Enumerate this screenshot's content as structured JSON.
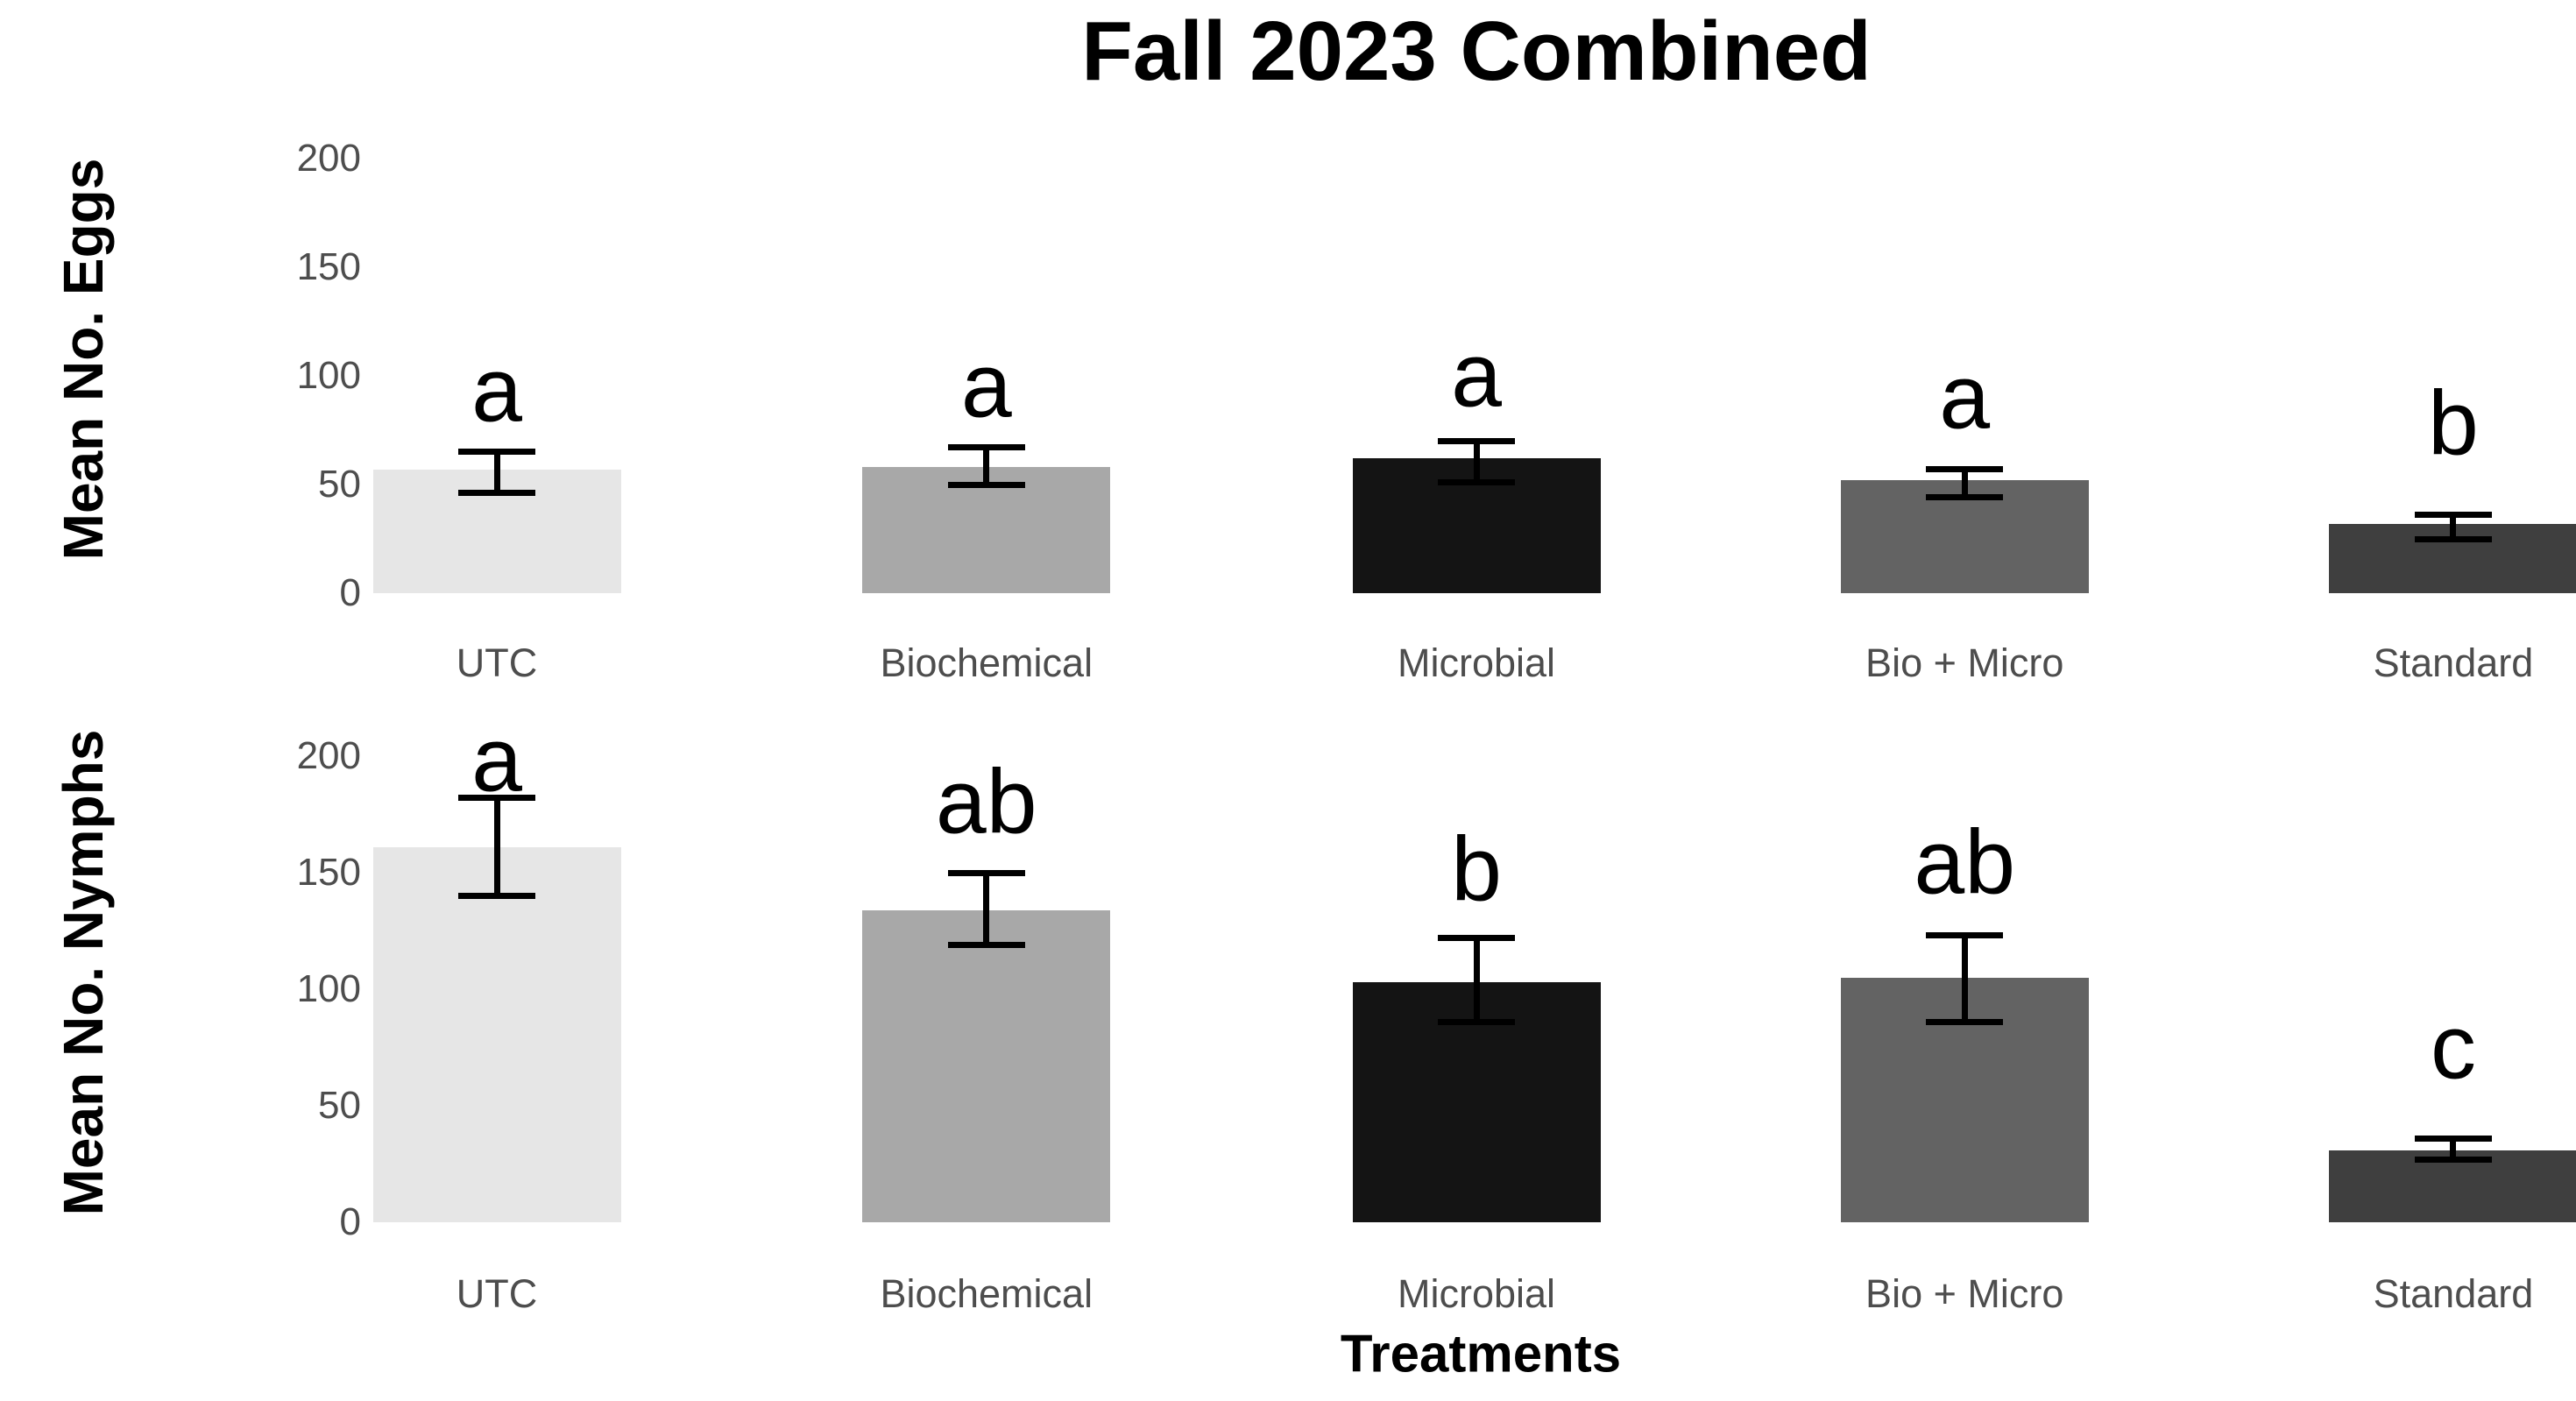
{
  "title": "Fall 2023 Combined",
  "x_axis_title": "Treatments",
  "categories": [
    "UTC",
    "Biochemical",
    "Microbial",
    "Bio + Micro",
    "Standard"
  ],
  "colors": {
    "bar_fills": [
      "#e6e6e6",
      "#a8a8a8",
      "#141414",
      "#636363",
      "#3f3f3f"
    ],
    "axis_text": "#4d4d4d",
    "title_text": "#000000",
    "error_bar": "#000000",
    "background": "#ffffff"
  },
  "chart_data": [
    {
      "type": "bar",
      "title": "Fall 2023 Combined",
      "ylabel": "Mean No. Eggs",
      "xlabel": "Treatments",
      "categories": [
        "UTC",
        "Biochemical",
        "Microbial",
        "Bio + Micro",
        "Standard"
      ],
      "values": [
        57,
        58,
        62,
        52,
        32
      ],
      "error_low": [
        46,
        50,
        51,
        44,
        25
      ],
      "error_high": [
        65,
        67,
        70,
        57,
        36
      ],
      "sig_letters": [
        "a",
        "a",
        "a",
        "a",
        "b"
      ],
      "letter_y": [
        93,
        95,
        100,
        90,
        78
      ],
      "yticks": [
        0,
        50,
        100,
        150,
        200
      ],
      "ylim": [
        0,
        215
      ],
      "grid": false,
      "legend": false
    },
    {
      "type": "bar",
      "title": "Fall 2023 Combined",
      "ylabel": "Mean No. Nymphs",
      "xlabel": "Treatments",
      "categories": [
        "UTC",
        "Biochemical",
        "Microbial",
        "Bio + Micro",
        "Standard"
      ],
      "values": [
        161,
        134,
        103,
        105,
        31
      ],
      "error_low": [
        140,
        119,
        86,
        86,
        27
      ],
      "error_high": [
        182,
        150,
        122,
        123,
        36
      ],
      "sig_letters": [
        "a",
        "ab",
        "b",
        "ab",
        "c"
      ],
      "letter_y": [
        198,
        180,
        151,
        154,
        75
      ],
      "yticks": [
        0,
        50,
        100,
        150,
        200
      ],
      "ylim": [
        0,
        215
      ],
      "grid": false,
      "legend": false
    }
  ]
}
